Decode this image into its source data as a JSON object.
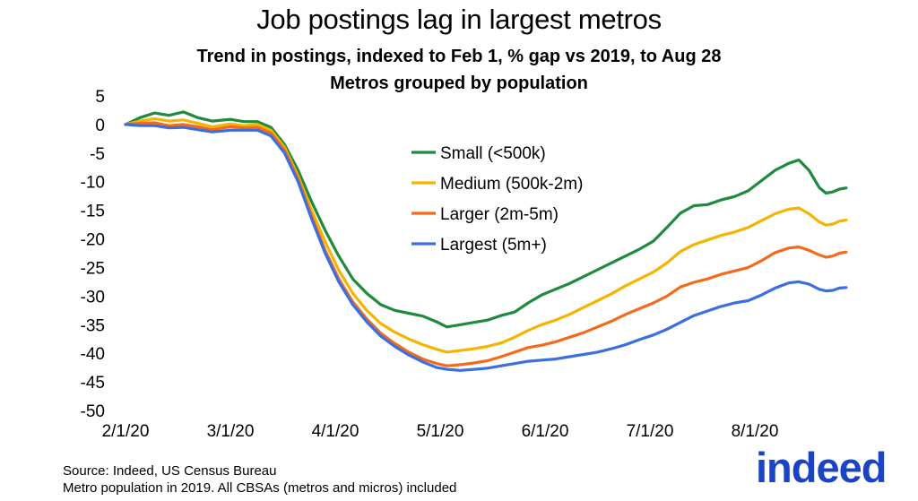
{
  "chart_data": {
    "type": "line",
    "title": "Job postings lag in largest metros",
    "subtitle_lines": [
      "Trend in postings, indexed to Feb 1, % gap vs 2019, to Aug 28",
      "Metros grouped by population"
    ],
    "ylim": [
      -50,
      5
    ],
    "yticks": [
      5,
      0,
      -5,
      -10,
      -15,
      -20,
      -25,
      -30,
      -35,
      -40,
      -45,
      -50
    ],
    "x_range": [
      "2020-02-01",
      "2020-08-28"
    ],
    "xticks": [
      {
        "date": "2020-02-01",
        "label": "2/1/20"
      },
      {
        "date": "2020-03-01",
        "label": "3/1/20"
      },
      {
        "date": "2020-04-01",
        "label": "4/1/20"
      },
      {
        "date": "2020-05-01",
        "label": "5/1/20"
      },
      {
        "date": "2020-06-01",
        "label": "6/1/20"
      },
      {
        "date": "2020-07-01",
        "label": "7/1/20"
      },
      {
        "date": "2020-08-01",
        "label": "8/1/20"
      }
    ],
    "grid": false,
    "legend_position": "center-right",
    "series": [
      {
        "name": "Small (<500k)",
        "color": "#1f8a3c",
        "points": [
          [
            "2020-02-01",
            0
          ],
          [
            "2020-02-05",
            1.2
          ],
          [
            "2020-02-09",
            2.0
          ],
          [
            "2020-02-13",
            1.6
          ],
          [
            "2020-02-17",
            2.2
          ],
          [
            "2020-02-21",
            1.2
          ],
          [
            "2020-02-25",
            0.6
          ],
          [
            "2020-03-01",
            0.9
          ],
          [
            "2020-03-05",
            0.5
          ],
          [
            "2020-03-09",
            0.5
          ],
          [
            "2020-03-13",
            -0.5
          ],
          [
            "2020-03-17",
            -3.5
          ],
          [
            "2020-03-21",
            -8.0
          ],
          [
            "2020-03-25",
            -13.5
          ],
          [
            "2020-03-29",
            -18.5
          ],
          [
            "2020-04-02",
            -23.0
          ],
          [
            "2020-04-06",
            -27.0
          ],
          [
            "2020-04-10",
            -29.5
          ],
          [
            "2020-04-14",
            -31.5
          ],
          [
            "2020-04-18",
            -32.5
          ],
          [
            "2020-04-22",
            -33.0
          ],
          [
            "2020-04-26",
            -33.5
          ],
          [
            "2020-04-30",
            -34.5
          ],
          [
            "2020-05-03",
            -35.4
          ],
          [
            "2020-05-07",
            -35.0
          ],
          [
            "2020-05-11",
            -34.6
          ],
          [
            "2020-05-15",
            -34.2
          ],
          [
            "2020-05-19",
            -33.4
          ],
          [
            "2020-05-23",
            -32.8
          ],
          [
            "2020-05-27",
            -31.2
          ],
          [
            "2020-05-31",
            -29.8
          ],
          [
            "2020-06-04",
            -28.8
          ],
          [
            "2020-06-08",
            -27.8
          ],
          [
            "2020-06-12",
            -26.6
          ],
          [
            "2020-06-16",
            -25.4
          ],
          [
            "2020-06-20",
            -24.2
          ],
          [
            "2020-06-24",
            -23.0
          ],
          [
            "2020-06-28",
            -21.8
          ],
          [
            "2020-07-02",
            -20.4
          ],
          [
            "2020-07-06",
            -18.0
          ],
          [
            "2020-07-10",
            -15.5
          ],
          [
            "2020-07-14",
            -14.2
          ],
          [
            "2020-07-18",
            -14.0
          ],
          [
            "2020-07-22",
            -13.2
          ],
          [
            "2020-07-26",
            -12.6
          ],
          [
            "2020-07-30",
            -11.6
          ],
          [
            "2020-08-03",
            -9.8
          ],
          [
            "2020-08-07",
            -8.0
          ],
          [
            "2020-08-11",
            -6.8
          ],
          [
            "2020-08-14",
            -6.2
          ],
          [
            "2020-08-17",
            -8.0
          ],
          [
            "2020-08-20",
            -11.0
          ],
          [
            "2020-08-22",
            -12.0
          ],
          [
            "2020-08-24",
            -11.8
          ],
          [
            "2020-08-26",
            -11.3
          ],
          [
            "2020-08-28",
            -11.1
          ]
        ]
      },
      {
        "name": "Medium (500k-2m)",
        "color": "#f4b400",
        "points": [
          [
            "2020-02-01",
            0
          ],
          [
            "2020-02-05",
            0.6
          ],
          [
            "2020-02-09",
            1.0
          ],
          [
            "2020-02-13",
            0.6
          ],
          [
            "2020-02-17",
            0.8
          ],
          [
            "2020-02-21",
            0.2
          ],
          [
            "2020-02-25",
            -0.4
          ],
          [
            "2020-03-01",
            0.1
          ],
          [
            "2020-03-05",
            -0.2
          ],
          [
            "2020-03-09",
            0.0
          ],
          [
            "2020-03-13",
            -1.0
          ],
          [
            "2020-03-17",
            -4.0
          ],
          [
            "2020-03-21",
            -9.0
          ],
          [
            "2020-03-25",
            -15.0
          ],
          [
            "2020-03-29",
            -20.5
          ],
          [
            "2020-04-02",
            -25.5
          ],
          [
            "2020-04-06",
            -29.5
          ],
          [
            "2020-04-10",
            -32.5
          ],
          [
            "2020-04-14",
            -34.8
          ],
          [
            "2020-04-18",
            -36.3
          ],
          [
            "2020-04-22",
            -37.5
          ],
          [
            "2020-04-26",
            -38.5
          ],
          [
            "2020-04-30",
            -39.3
          ],
          [
            "2020-05-03",
            -39.8
          ],
          [
            "2020-05-07",
            -39.5
          ],
          [
            "2020-05-11",
            -39.2
          ],
          [
            "2020-05-15",
            -38.8
          ],
          [
            "2020-05-19",
            -38.2
          ],
          [
            "2020-05-23",
            -37.2
          ],
          [
            "2020-05-27",
            -36.0
          ],
          [
            "2020-05-31",
            -35.0
          ],
          [
            "2020-06-04",
            -34.2
          ],
          [
            "2020-06-08",
            -33.2
          ],
          [
            "2020-06-12",
            -32.0
          ],
          [
            "2020-06-16",
            -30.8
          ],
          [
            "2020-06-20",
            -29.6
          ],
          [
            "2020-06-24",
            -28.2
          ],
          [
            "2020-06-28",
            -27.0
          ],
          [
            "2020-07-02",
            -25.8
          ],
          [
            "2020-07-06",
            -24.2
          ],
          [
            "2020-07-10",
            -22.2
          ],
          [
            "2020-07-14",
            -21.0
          ],
          [
            "2020-07-18",
            -20.2
          ],
          [
            "2020-07-22",
            -19.4
          ],
          [
            "2020-07-26",
            -18.8
          ],
          [
            "2020-07-30",
            -18.0
          ],
          [
            "2020-08-03",
            -16.8
          ],
          [
            "2020-08-07",
            -15.6
          ],
          [
            "2020-08-11",
            -14.8
          ],
          [
            "2020-08-14",
            -14.6
          ],
          [
            "2020-08-17",
            -15.6
          ],
          [
            "2020-08-20",
            -17.0
          ],
          [
            "2020-08-22",
            -17.6
          ],
          [
            "2020-08-24",
            -17.4
          ],
          [
            "2020-08-26",
            -16.9
          ],
          [
            "2020-08-28",
            -16.7
          ]
        ]
      },
      {
        "name": "Larger (2m-5m)",
        "color": "#f26b1d",
        "points": [
          [
            "2020-02-01",
            0
          ],
          [
            "2020-02-05",
            0.2
          ],
          [
            "2020-02-09",
            0.3
          ],
          [
            "2020-02-13",
            -0.2
          ],
          [
            "2020-02-17",
            0.0
          ],
          [
            "2020-02-21",
            -0.4
          ],
          [
            "2020-02-25",
            -0.9
          ],
          [
            "2020-03-01",
            -0.4
          ],
          [
            "2020-03-05",
            -0.6
          ],
          [
            "2020-03-09",
            -0.5
          ],
          [
            "2020-03-13",
            -1.5
          ],
          [
            "2020-03-17",
            -4.5
          ],
          [
            "2020-03-21",
            -9.5
          ],
          [
            "2020-03-25",
            -16.0
          ],
          [
            "2020-03-29",
            -22.0
          ],
          [
            "2020-04-02",
            -27.0
          ],
          [
            "2020-04-06",
            -31.0
          ],
          [
            "2020-04-10",
            -34.0
          ],
          [
            "2020-04-14",
            -36.5
          ],
          [
            "2020-04-18",
            -38.3
          ],
          [
            "2020-04-22",
            -39.8
          ],
          [
            "2020-04-26",
            -41.0
          ],
          [
            "2020-04-30",
            -41.8
          ],
          [
            "2020-05-03",
            -42.2
          ],
          [
            "2020-05-07",
            -42.0
          ],
          [
            "2020-05-11",
            -41.7
          ],
          [
            "2020-05-15",
            -41.3
          ],
          [
            "2020-05-19",
            -40.6
          ],
          [
            "2020-05-23",
            -39.8
          ],
          [
            "2020-05-27",
            -39.0
          ],
          [
            "2020-05-31",
            -38.6
          ],
          [
            "2020-06-04",
            -38.0
          ],
          [
            "2020-06-08",
            -37.2
          ],
          [
            "2020-06-12",
            -36.4
          ],
          [
            "2020-06-16",
            -35.4
          ],
          [
            "2020-06-20",
            -34.4
          ],
          [
            "2020-06-24",
            -33.2
          ],
          [
            "2020-06-28",
            -32.2
          ],
          [
            "2020-07-02",
            -31.2
          ],
          [
            "2020-07-06",
            -30.0
          ],
          [
            "2020-07-10",
            -28.4
          ],
          [
            "2020-07-14",
            -27.6
          ],
          [
            "2020-07-18",
            -27.0
          ],
          [
            "2020-07-22",
            -26.2
          ],
          [
            "2020-07-26",
            -25.6
          ],
          [
            "2020-07-30",
            -25.0
          ],
          [
            "2020-08-03",
            -23.8
          ],
          [
            "2020-08-07",
            -22.4
          ],
          [
            "2020-08-11",
            -21.6
          ],
          [
            "2020-08-14",
            -21.4
          ],
          [
            "2020-08-17",
            -22.0
          ],
          [
            "2020-08-20",
            -22.8
          ],
          [
            "2020-08-22",
            -23.2
          ],
          [
            "2020-08-24",
            -23.0
          ],
          [
            "2020-08-26",
            -22.5
          ],
          [
            "2020-08-28",
            -22.3
          ]
        ]
      },
      {
        "name": "Largest (5m+)",
        "color": "#3b6fe0",
        "points": [
          [
            "2020-02-01",
            0
          ],
          [
            "2020-02-05",
            -0.2
          ],
          [
            "2020-02-09",
            -0.2
          ],
          [
            "2020-02-13",
            -0.6
          ],
          [
            "2020-02-17",
            -0.5
          ],
          [
            "2020-02-21",
            -0.9
          ],
          [
            "2020-02-25",
            -1.3
          ],
          [
            "2020-03-01",
            -1.0
          ],
          [
            "2020-03-05",
            -1.0
          ],
          [
            "2020-03-09",
            -1.0
          ],
          [
            "2020-03-13",
            -2.0
          ],
          [
            "2020-03-17",
            -5.0
          ],
          [
            "2020-03-21",
            -10.0
          ],
          [
            "2020-03-25",
            -16.5
          ],
          [
            "2020-03-29",
            -22.5
          ],
          [
            "2020-04-02",
            -27.5
          ],
          [
            "2020-04-06",
            -31.5
          ],
          [
            "2020-04-10",
            -34.5
          ],
          [
            "2020-04-14",
            -37.0
          ],
          [
            "2020-04-18",
            -38.8
          ],
          [
            "2020-04-22",
            -40.3
          ],
          [
            "2020-04-26",
            -41.5
          ],
          [
            "2020-04-30",
            -42.5
          ],
          [
            "2020-05-03",
            -42.8
          ],
          [
            "2020-05-07",
            -43.0
          ],
          [
            "2020-05-11",
            -42.8
          ],
          [
            "2020-05-15",
            -42.6
          ],
          [
            "2020-05-19",
            -42.2
          ],
          [
            "2020-05-23",
            -41.8
          ],
          [
            "2020-05-27",
            -41.4
          ],
          [
            "2020-05-31",
            -41.2
          ],
          [
            "2020-06-04",
            -41.0
          ],
          [
            "2020-06-08",
            -40.6
          ],
          [
            "2020-06-12",
            -40.2
          ],
          [
            "2020-06-16",
            -39.8
          ],
          [
            "2020-06-20",
            -39.2
          ],
          [
            "2020-06-24",
            -38.5
          ],
          [
            "2020-06-28",
            -37.6
          ],
          [
            "2020-07-02",
            -36.8
          ],
          [
            "2020-07-06",
            -35.8
          ],
          [
            "2020-07-10",
            -34.6
          ],
          [
            "2020-07-14",
            -33.4
          ],
          [
            "2020-07-18",
            -32.6
          ],
          [
            "2020-07-22",
            -31.8
          ],
          [
            "2020-07-26",
            -31.2
          ],
          [
            "2020-07-30",
            -30.8
          ],
          [
            "2020-08-03",
            -29.8
          ],
          [
            "2020-08-07",
            -28.6
          ],
          [
            "2020-08-11",
            -27.7
          ],
          [
            "2020-08-14",
            -27.5
          ],
          [
            "2020-08-17",
            -27.9
          ],
          [
            "2020-08-20",
            -28.8
          ],
          [
            "2020-08-22",
            -29.1
          ],
          [
            "2020-08-24",
            -29.0
          ],
          [
            "2020-08-26",
            -28.6
          ],
          [
            "2020-08-28",
            -28.5
          ]
        ]
      }
    ]
  },
  "footer": {
    "source": "Source: Indeed, US Census Bureau",
    "note": "Metro population in 2019. All CBSAs (metros and micros) included"
  },
  "logo": {
    "text": "indeed",
    "color": "#1a44c4"
  }
}
